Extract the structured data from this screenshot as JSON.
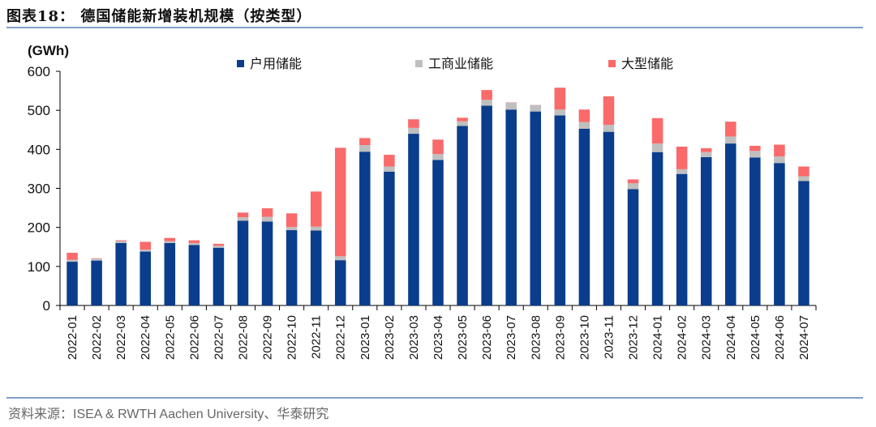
{
  "header": {
    "figure_title": "图表18：  德国储能新增装机规模（按类型）"
  },
  "footer": {
    "source": "资料来源：ISEA & RWTH Aachen University、华泰研究"
  },
  "colors": {
    "household": "#0a3d8c",
    "commercial": "#bfbfbf",
    "utility": "#fa6a6a",
    "rule": "#7f9fc9"
  },
  "chart_data": {
    "type": "bar",
    "stacked": true,
    "unit_label": "(GWh)",
    "xlabel": "",
    "ylabel": "",
    "ylim": [
      0,
      600
    ],
    "yticks": [
      0,
      100,
      200,
      300,
      400,
      500,
      600
    ],
    "legend_position": "top",
    "grid": false,
    "categories": [
      "2022-01",
      "2022-02",
      "2022-03",
      "2022-04",
      "2022-05",
      "2022-06",
      "2022-07",
      "2022-08",
      "2022-09",
      "2022-10",
      "2022-11",
      "2022-12",
      "2023-01",
      "2023-02",
      "2023-03",
      "2023-04",
      "2023-05",
      "2023-06",
      "2023-07",
      "2023-08",
      "2023-09",
      "2023-10",
      "2023-11",
      "2023-12",
      "2024-01",
      "2024-02",
      "2024-03",
      "2024-04",
      "2024-05",
      "2024-06",
      "2024-07"
    ],
    "series": [
      {
        "name": "户用储能",
        "color": "#0a3d8c",
        "values": [
          112,
          115,
          160,
          138,
          160,
          155,
          148,
          217,
          215,
          193,
          192,
          116,
          394,
          343,
          440,
          373,
          460,
          512,
          502,
          497,
          487,
          453,
          445,
          298,
          393,
          337,
          380,
          415,
          379,
          365,
          319
        ]
      },
      {
        "name": "工商业储能",
        "color": "#bfbfbf",
        "values": [
          5,
          5,
          5,
          5,
          5,
          5,
          5,
          9,
          12,
          8,
          10,
          10,
          17,
          13,
          15,
          15,
          12,
          15,
          17,
          17,
          15,
          17,
          18,
          15,
          22,
          12,
          13,
          18,
          17,
          17,
          12
        ]
      },
      {
        "name": "大型储能",
        "color": "#fa6a6a",
        "values": [
          18,
          1,
          2,
          20,
          8,
          7,
          5,
          12,
          22,
          35,
          90,
          278,
          18,
          30,
          22,
          37,
          9,
          25,
          1,
          0,
          56,
          32,
          73,
          10,
          65,
          58,
          10,
          38,
          13,
          30,
          25
        ]
      }
    ]
  }
}
